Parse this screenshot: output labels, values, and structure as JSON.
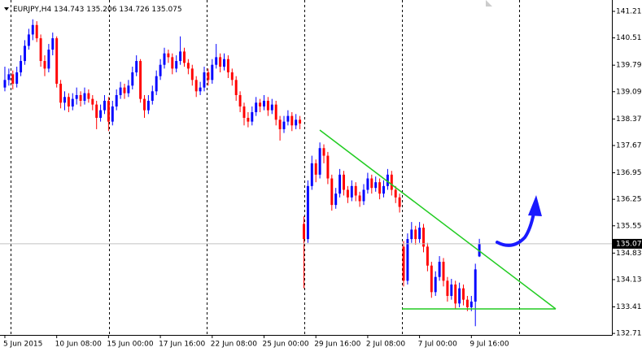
{
  "chart_data": {
    "type": "candlestick",
    "symbol": "EURJPY,H4",
    "open": [
      139.2,
      139.4,
      139.55,
      139.3,
      139.6,
      139.9,
      140.3,
      140.6,
      140.85,
      140.5,
      139.9,
      139.7,
      140.2,
      140.5,
      139.3,
      138.8,
      138.95,
      138.7,
      138.9,
      139.0,
      138.85,
      139.05,
      138.9,
      138.75,
      138.4,
      138.6,
      138.85,
      138.3,
      138.7,
      139.0,
      139.2,
      139.05,
      139.25,
      139.6,
      139.9,
      138.9,
      138.6,
      138.85,
      139.1,
      139.5,
      139.8,
      140.1,
      140.0,
      139.7,
      139.9,
      140.15,
      139.85,
      139.7,
      139.4,
      139.1,
      139.2,
      139.6,
      139.4,
      139.8,
      140.0,
      139.75,
      139.95,
      139.6,
      139.4,
      139.0,
      138.7,
      138.4,
      138.3,
      138.55,
      138.8,
      138.7,
      138.85,
      138.6,
      138.75,
      138.35,
      138.1,
      138.3,
      138.45,
      138.2,
      138.35,
      135.6,
      135.2,
      136.6,
      137.2,
      136.9,
      137.6,
      137.4,
      136.8,
      136.1,
      136.4,
      136.9,
      136.5,
      136.3,
      136.6,
      136.35,
      136.2,
      136.5,
      136.8,
      136.55,
      136.7,
      136.4,
      136.6,
      136.9,
      136.5,
      136.3,
      135.0,
      134.1,
      135.2,
      135.45,
      135.2,
      135.5,
      135.0,
      134.5,
      133.8,
      134.2,
      134.6,
      134.1,
      133.7,
      134.0,
      133.5,
      133.9,
      133.6,
      133.4,
      133.55,
      134.743
    ],
    "high": [
      139.75,
      139.7,
      139.65,
      139.75,
      140.05,
      140.45,
      140.75,
      141.0,
      140.95,
      140.6,
      140.05,
      140.35,
      140.65,
      140.55,
      139.4,
      139.1,
      139.05,
      139.05,
      139.2,
      139.1,
      139.2,
      139.15,
      139.0,
      138.85,
      138.75,
      139.0,
      138.95,
      138.85,
      139.15,
      139.35,
      139.3,
      139.4,
      139.75,
      140.05,
      139.95,
      139.0,
      139.0,
      139.25,
      139.65,
      139.95,
      140.25,
      140.2,
      140.1,
      140.05,
      140.55,
      140.25,
      139.95,
      139.8,
      139.5,
      139.35,
      139.75,
      139.7,
      139.95,
      140.35,
      140.1,
      140.1,
      140.05,
      139.7,
      139.5,
      139.1,
      138.8,
      138.55,
      138.7,
      138.95,
      138.9,
      139.0,
      138.95,
      138.9,
      138.85,
      138.45,
      138.45,
      138.6,
      138.55,
      138.5,
      138.45,
      135.8,
      136.75,
      137.4,
      137.3,
      137.75,
      137.7,
      137.5,
      136.9,
      136.55,
      137.05,
      137.0,
      136.6,
      136.75,
      136.7,
      136.45,
      136.65,
      136.95,
      136.9,
      136.85,
      136.8,
      136.75,
      137.05,
      137.0,
      136.6,
      136.4,
      135.15,
      135.35,
      135.65,
      135.55,
      135.65,
      135.6,
      135.1,
      134.6,
      134.35,
      134.75,
      134.7,
      134.2,
      134.15,
      134.1,
      134.05,
      134.0,
      133.7,
      133.7,
      134.55,
      135.206
    ],
    "low": [
      139.1,
      139.25,
      139.15,
      139.2,
      139.5,
      139.8,
      140.2,
      140.45,
      140.4,
      139.75,
      139.5,
      139.6,
      140.05,
      139.2,
      138.65,
      138.6,
      138.55,
      138.6,
      138.75,
      138.7,
      138.75,
      138.8,
      138.6,
      138.1,
      138.3,
      138.5,
      138.05,
      138.2,
      138.6,
      138.9,
      138.9,
      138.95,
      139.15,
      139.5,
      138.8,
      138.4,
      138.5,
      138.75,
      139.0,
      139.4,
      139.7,
      139.85,
      139.55,
      139.6,
      139.8,
      139.75,
      139.55,
      139.25,
      138.95,
      139.0,
      139.1,
      139.25,
      139.3,
      139.7,
      139.6,
      139.65,
      139.45,
      139.25,
      138.85,
      138.55,
      138.2,
      138.15,
      138.2,
      138.45,
      138.55,
      138.6,
      138.45,
      138.5,
      138.2,
      137.8,
      138.0,
      138.2,
      138.05,
      138.1,
      138.1,
      133.9,
      135.1,
      136.5,
      136.7,
      136.8,
      137.2,
      136.65,
      135.95,
      136.0,
      136.3,
      136.35,
      136.15,
      136.2,
      136.2,
      136.05,
      136.1,
      136.4,
      136.4,
      136.45,
      136.25,
      136.3,
      136.5,
      136.35,
      136.15,
      135.9,
      133.95,
      134.0,
      135.1,
      135.05,
      135.1,
      134.85,
      134.35,
      133.65,
      133.7,
      134.1,
      133.95,
      133.55,
      133.6,
      133.35,
      133.4,
      133.45,
      133.3,
      133.3,
      132.9,
      134.726
    ],
    "close": [
      139.4,
      139.55,
      139.3,
      139.6,
      139.9,
      140.3,
      140.6,
      140.85,
      140.5,
      139.9,
      139.7,
      140.2,
      140.5,
      139.3,
      138.8,
      138.95,
      138.7,
      138.9,
      139.0,
      138.85,
      139.05,
      138.9,
      138.75,
      138.4,
      138.6,
      138.85,
      138.3,
      138.7,
      139.0,
      139.2,
      139.05,
      139.25,
      139.6,
      139.9,
      138.9,
      138.6,
      138.85,
      139.1,
      139.5,
      139.8,
      140.1,
      140.0,
      139.7,
      139.9,
      140.15,
      139.85,
      139.7,
      139.4,
      139.1,
      139.2,
      139.6,
      139.4,
      139.8,
      140.0,
      139.75,
      139.95,
      139.6,
      139.4,
      139.0,
      138.7,
      138.4,
      138.3,
      138.55,
      138.8,
      138.7,
      138.85,
      138.6,
      138.75,
      138.35,
      138.1,
      138.3,
      138.45,
      138.2,
      138.35,
      138.25,
      135.2,
      136.6,
      137.2,
      136.9,
      137.6,
      137.4,
      136.8,
      136.1,
      136.4,
      136.9,
      136.5,
      136.3,
      136.6,
      136.35,
      136.2,
      136.5,
      136.8,
      136.55,
      136.7,
      136.4,
      136.6,
      136.9,
      136.5,
      136.3,
      136.05,
      134.1,
      135.2,
      135.45,
      135.2,
      135.5,
      135.0,
      134.5,
      133.8,
      134.2,
      134.6,
      134.1,
      133.7,
      134.0,
      133.5,
      133.9,
      133.6,
      133.4,
      133.55,
      134.4,
      135.075
    ],
    "up_color": "#0000ff",
    "down_color": "#ff0000",
    "xlim": [
      -1.22,
      152.24
    ],
    "ylim": [
      132.67,
      141.51
    ],
    "xticks": [
      {
        "value": 0,
        "label": "5 Jun 2015"
      },
      {
        "value": 13,
        "label": "10 Jun 08:00"
      },
      {
        "value": 26,
        "label": "15 Jun 00:00"
      },
      {
        "value": 39,
        "label": "17 Jun 16:00"
      },
      {
        "value": 52,
        "label": "22 Jun 08:00"
      },
      {
        "value": 65,
        "label": "25 Jun 00:00"
      },
      {
        "value": 78,
        "label": "29 Jun 16:00"
      },
      {
        "value": 91,
        "label": "2 Jul 08:00"
      },
      {
        "value": 104,
        "label": "7 Jul 00:00"
      },
      {
        "value": 117,
        "label": "9 Jul 16:00"
      }
    ],
    "yticks": [
      {
        "value": 141.21,
        "label": "141.210"
      },
      {
        "value": 140.51,
        "label": "140.510"
      },
      {
        "value": 139.79,
        "label": "139.790"
      },
      {
        "value": 139.09,
        "label": "139.090"
      },
      {
        "value": 138.37,
        "label": "138.370"
      },
      {
        "value": 137.67,
        "label": "137.670"
      },
      {
        "value": 136.95,
        "label": "136.950"
      },
      {
        "value": 136.25,
        "label": "136.250"
      },
      {
        "value": 135.55,
        "label": "135.550"
      },
      {
        "value": 134.83,
        "label": "134.830"
      },
      {
        "value": 134.13,
        "label": "134.130"
      },
      {
        "value": 133.41,
        "label": "133.410"
      },
      {
        "value": 132.71,
        "label": "132.710"
      }
    ]
  }
}
